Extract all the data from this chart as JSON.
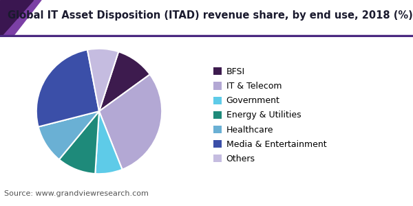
{
  "title": "Global IT Asset Disposition (ITAD) revenue share, by end use, 2018 (%)",
  "source": "Source: www.grandviewresearch.com",
  "labels": [
    "BFSI",
    "IT & Telecom",
    "Government",
    "Energy & Utilities",
    "Healthcare",
    "Media & Entertainment",
    "Others"
  ],
  "values": [
    10,
    29,
    7,
    10,
    10,
    26,
    8
  ],
  "colors": [
    "#3d1b4e",
    "#b3a8d4",
    "#5ecbe8",
    "#1e8a7a",
    "#6ab0d4",
    "#3b4fa8",
    "#c5bce0"
  ],
  "title_fontsize": 10.5,
  "legend_fontsize": 9,
  "source_fontsize": 8,
  "startangle": 72,
  "background_color": "#ffffff",
  "header_line_color": "#5b2d8e",
  "header_bar_color": "#6b3fa0"
}
